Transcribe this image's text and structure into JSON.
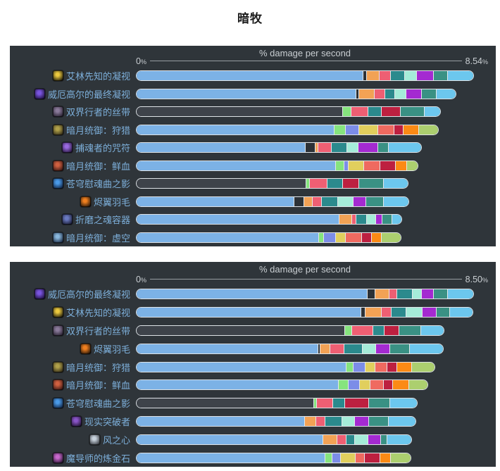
{
  "page": {
    "title": "暗牧"
  },
  "colors": {
    "page_background": "#ffffff",
    "panel_background": "#2f353a",
    "label_text": "#7dafda",
    "axis_text": "#c9ced2",
    "axis_line": "#979da2",
    "bar_border": "#dde2e6",
    "segments": {
      "base": "#7cb2e6",
      "unfilled": "#3e434a",
      "sep": "#2c3136",
      "orange": "#f2a255",
      "pink": "#ee5f73",
      "teal": "#2b8a8d",
      "aqua": "#a5ecd9",
      "purple": "#a42ad1",
      "seagreen": "#3a9184",
      "sky": "#6cc7ee",
      "green": "#86e47e",
      "peri": "#7c8de8",
      "yellow": "#e1cf5d",
      "salmon": "#ef6a60",
      "crimson": "#bd2040",
      "orange2": "#fb8a15",
      "lgreen": "#accf6f"
    }
  },
  "chart_data": [
    {
      "type": "bar",
      "orientation": "horizontal",
      "stacked": true,
      "axis_title": "% damage per second",
      "axis_min_label": "0",
      "axis_max_label": "8.54",
      "unit": "%",
      "xlim": [
        0,
        8.54
      ],
      "grid": false,
      "legend": "none",
      "categories": [
        "艾林先知的凝视",
        "威厄高尔的最终凝视",
        "双界行者的丝带",
        "暗月统御：狩猎",
        "捕魂者的咒符",
        "暗月统御：鲜血",
        "苍穹慰魂曲之影",
        "烬翼羽毛",
        "折磨之魂容器",
        "暗月统御：虚空"
      ],
      "values": [
        8.54,
        8.1,
        7.7,
        7.65,
        7.23,
        7.14,
        6.89,
        6.91,
        6.73,
        6.71
      ],
      "rows": [
        {
          "label": "艾林先知的凝视",
          "icon": "gold-eye",
          "icon_colors": [
            "#ecc93f",
            "#141208"
          ],
          "total_pct": 8.54,
          "filled": true,
          "segments": [
            [
              "base",
              67.2
            ],
            [
              "sep",
              0.9
            ],
            [
              "orange",
              3.8
            ],
            [
              "pink",
              3.4
            ],
            [
              "teal",
              4.2
            ],
            [
              "aqua",
              3.6
            ],
            [
              "purple",
              5.0
            ],
            [
              "seagreen",
              4.2
            ],
            [
              "sky",
              7.7
            ]
          ]
        },
        {
          "label": "威厄高尔的最终凝视",
          "icon": "purple-eye",
          "icon_colors": [
            "#7a55e0",
            "#150a2e"
          ],
          "total_pct": 8.1,
          "filled": true,
          "segments": [
            [
              "base",
              65.1
            ],
            [
              "sep",
              0.9
            ],
            [
              "orange",
              4.6
            ],
            [
              "pink",
              3.1
            ],
            [
              "teal",
              3.0
            ],
            [
              "aqua",
              3.3
            ],
            [
              "purple",
              4.6
            ],
            [
              "seagreen",
              4.4
            ],
            [
              "sky",
              5.8
            ]
          ]
        },
        {
          "label": "双界行者的丝带",
          "icon": "dark-ribbon",
          "icon_colors": [
            "#8a7a9a",
            "#201a28"
          ],
          "total_pct": 7.7,
          "filled": false,
          "segments": [
            [
              "unfilled",
              61.2
            ],
            [
              "green",
              2.5
            ],
            [
              "pink",
              5.0
            ],
            [
              "teal",
              3.9
            ],
            [
              "crimson",
              5.6
            ],
            [
              "seagreen",
              7.3
            ],
            [
              "sky",
              4.7
            ]
          ]
        },
        {
          "label": "暗月统御：狩猎",
          "icon": "darkmoon-card-hunt",
          "icon_colors": [
            "#b0a04a",
            "#2a2414"
          ],
          "total_pct": 7.65,
          "filled": true,
          "segments": [
            [
              "base",
              58.5
            ],
            [
              "green",
              3.5
            ],
            [
              "peri",
              3.9
            ],
            [
              "yellow",
              5.6
            ],
            [
              "salmon",
              4.8
            ],
            [
              "crimson",
              2.9
            ],
            [
              "orange2",
              4.6
            ],
            [
              "lgreen",
              5.8
            ]
          ]
        },
        {
          "label": "捕魂者的咒符",
          "icon": "soul-charm",
          "icon_colors": [
            "#9a6ae0",
            "#1c1030"
          ],
          "total_pct": 7.23,
          "filled": true,
          "segments": [
            [
              "base",
              50.0
            ],
            [
              "sep",
              2.9
            ],
            [
              "orange",
              0.8
            ],
            [
              "pink",
              4.0
            ],
            [
              "teal",
              4.6
            ],
            [
              "aqua",
              3.5
            ],
            [
              "purple",
              5.8
            ],
            [
              "seagreen",
              3.1
            ],
            [
              "sky",
              9.9
            ]
          ]
        },
        {
          "label": "暗月统御：鲜血",
          "icon": "darkmoon-card-blood",
          "icon_colors": [
            "#d06040",
            "#2e1210"
          ],
          "total_pct": 7.14,
          "filled": true,
          "segments": [
            [
              "base",
              59.1
            ],
            [
              "green",
              2.5
            ],
            [
              "peri",
              1.2
            ],
            [
              "yellow",
              4.6
            ],
            [
              "salmon",
              4.8
            ],
            [
              "crimson",
              4.6
            ],
            [
              "orange2",
              3.5
            ],
            [
              "lgreen",
              3.3
            ]
          ]
        },
        {
          "label": "苍穹慰魂曲之影",
          "icon": "blue-crystal",
          "icon_colors": [
            "#4a9ae8",
            "#0c1c38"
          ],
          "total_pct": 6.89,
          "filled": false,
          "segments": [
            [
              "unfilled",
              50.2
            ],
            [
              "green",
              1.0
            ],
            [
              "pink",
              5.4
            ],
            [
              "teal",
              4.6
            ],
            [
              "crimson",
              4.8
            ],
            [
              "seagreen",
              7.3
            ],
            [
              "sky",
              7.4
            ]
          ]
        },
        {
          "label": "烬翼羽毛",
          "icon": "ember-feather",
          "icon_colors": [
            "#f08020",
            "#1a0f06"
          ],
          "total_pct": 6.91,
          "filled": true,
          "segments": [
            [
              "base",
              46.7
            ],
            [
              "sep",
              2.9
            ],
            [
              "orange",
              2.5
            ],
            [
              "pink",
              2.7
            ],
            [
              "teal",
              4.8
            ],
            [
              "aqua",
              4.8
            ],
            [
              "purple",
              3.7
            ],
            [
              "seagreen",
              5.2
            ],
            [
              "sky",
              7.6
            ]
          ]
        },
        {
          "label": "折磨之魂容器",
          "icon": "soul-vessel",
          "icon_colors": [
            "#6a7ac0",
            "#12142a"
          ],
          "total_pct": 6.73,
          "filled": true,
          "segments": [
            [
              "base",
              60.2
            ],
            [
              "orange",
              3.7
            ],
            [
              "pink",
              1.2
            ],
            [
              "teal",
              3.1
            ],
            [
              "aqua",
              2.9
            ],
            [
              "purple",
              1.7
            ],
            [
              "seagreen",
              3.1
            ],
            [
              "sky",
              2.9
            ]
          ]
        },
        {
          "label": "暗月统御：虚空",
          "icon": "darkmoon-card-void",
          "icon_colors": [
            "#8ab8dd",
            "#14223a"
          ],
          "total_pct": 6.71,
          "filled": true,
          "segments": [
            [
              "base",
              54.0
            ],
            [
              "green",
              1.5
            ],
            [
              "peri",
              3.5
            ],
            [
              "yellow",
              2.9
            ],
            [
              "salmon",
              5.0
            ],
            [
              "crimson",
              2.9
            ],
            [
              "orange2",
              2.9
            ],
            [
              "lgreen",
              5.9
            ]
          ]
        }
      ]
    },
    {
      "type": "bar",
      "orientation": "horizontal",
      "stacked": true,
      "axis_title": "% damage per second",
      "axis_min_label": "0",
      "axis_max_label": "8.50",
      "unit": "%",
      "xlim": [
        0,
        8.5
      ],
      "grid": false,
      "legend": "none",
      "categories": [
        "威厄高尔的最终凝视",
        "艾林先知的凝视",
        "双界行者的丝带",
        "烬翼羽毛",
        "暗月统御：狩猎",
        "暗月统御：鲜血",
        "苍穹慰魂曲之影",
        "现实突破者",
        "风之心",
        "魔导师的炼金石"
      ],
      "values": [
        8.5,
        8.48,
        7.75,
        7.74,
        7.53,
        7.34,
        7.08,
        7.06,
        6.94,
        6.93
      ],
      "rows": [
        {
          "label": "威厄高尔的最终凝视",
          "icon": "purple-eye",
          "icon_colors": [
            "#7a55e0",
            "#150a2e"
          ],
          "total_pct": 8.5,
          "filled": true,
          "segments": [
            [
              "base",
              68.5
            ],
            [
              "sep",
              2.3
            ],
            [
              "orange",
              4.0
            ],
            [
              "pink",
              2.5
            ],
            [
              "teal",
              4.6
            ],
            [
              "aqua",
              2.7
            ],
            [
              "purple",
              3.4
            ],
            [
              "seagreen",
              4.2
            ],
            [
              "sky",
              7.8
            ]
          ]
        },
        {
          "label": "艾林先知的凝视",
          "icon": "gold-eye",
          "icon_colors": [
            "#ecc93f",
            "#141208"
          ],
          "total_pct": 8.48,
          "filled": true,
          "segments": [
            [
              "base",
              66.6
            ],
            [
              "sep",
              1.1
            ],
            [
              "orange",
              5.0
            ],
            [
              "pink",
              2.9
            ],
            [
              "teal",
              4.4
            ],
            [
              "aqua",
              4.8
            ],
            [
              "purple",
              4.2
            ],
            [
              "seagreen",
              4.0
            ],
            [
              "sky",
              6.8
            ]
          ]
        },
        {
          "label": "双界行者的丝带",
          "icon": "dark-ribbon",
          "icon_colors": [
            "#8a7a9a",
            "#201a28"
          ],
          "total_pct": 7.75,
          "filled": false,
          "segments": [
            [
              "unfilled",
              61.8
            ],
            [
              "green",
              2.1
            ],
            [
              "pink",
              6.3
            ],
            [
              "teal",
              3.2
            ],
            [
              "crimson",
              4.4
            ],
            [
              "seagreen",
              6.5
            ],
            [
              "sky",
              6.9
            ]
          ]
        },
        {
          "label": "烬翼羽毛",
          "icon": "ember-feather",
          "icon_colors": [
            "#f08020",
            "#1a0f06"
          ],
          "total_pct": 7.74,
          "filled": true,
          "segments": [
            [
              "base",
              53.8
            ],
            [
              "sep",
              0.6
            ],
            [
              "orange",
              2.9
            ],
            [
              "pink",
              4.2
            ],
            [
              "teal",
              5.5
            ],
            [
              "aqua",
              4.0
            ],
            [
              "purple",
              4.2
            ],
            [
              "seagreen",
              5.9
            ],
            [
              "sky",
              9.9
            ]
          ]
        },
        {
          "label": "暗月统御：狩猎",
          "icon": "darkmoon-card-hunt",
          "icon_colors": [
            "#b0a04a",
            "#2a2414"
          ],
          "total_pct": 7.53,
          "filled": true,
          "segments": [
            [
              "base",
              62.2
            ],
            [
              "green",
              2.1
            ],
            [
              "peri",
              3.6
            ],
            [
              "yellow",
              2.9
            ],
            [
              "salmon",
              3.6
            ],
            [
              "crimson",
              2.9
            ],
            [
              "orange2",
              4.4
            ],
            [
              "lgreen",
              6.9
            ]
          ]
        },
        {
          "label": "暗月统御：鲜血",
          "icon": "darkmoon-card-blood",
          "icon_colors": [
            "#d06040",
            "#2e1210"
          ],
          "total_pct": 7.34,
          "filled": true,
          "segments": [
            [
              "base",
              59.9
            ],
            [
              "green",
              2.9
            ],
            [
              "peri",
              3.4
            ],
            [
              "yellow",
              3.2
            ],
            [
              "salmon",
              3.8
            ],
            [
              "crimson",
              2.7
            ],
            [
              "orange2",
              5.0
            ],
            [
              "lgreen",
              5.5
            ]
          ]
        },
        {
          "label": "苍穹慰魂曲之影",
          "icon": "blue-crystal",
          "icon_colors": [
            "#4a9ae8",
            "#0c1c38"
          ],
          "total_pct": 7.08,
          "filled": false,
          "segments": [
            [
              "unfilled",
              52.5
            ],
            [
              "green",
              0.8
            ],
            [
              "pink",
              5.0
            ],
            [
              "teal",
              3.4
            ],
            [
              "crimson",
              7.1
            ],
            [
              "seagreen",
              6.3
            ],
            [
              "sky",
              8.2
            ]
          ]
        },
        {
          "label": "现实突破者",
          "icon": "reality-breaker",
          "icon_colors": [
            "#8a55c8",
            "#170e26"
          ],
          "total_pct": 7.06,
          "filled": true,
          "segments": [
            [
              "base",
              49.8
            ],
            [
              "orange",
              3.4
            ],
            [
              "pink",
              2.7
            ],
            [
              "teal",
              5.0
            ],
            [
              "aqua",
              3.8
            ],
            [
              "purple",
              4.2
            ],
            [
              "seagreen",
              5.9
            ],
            [
              "sky",
              8.2
            ]
          ]
        },
        {
          "label": "风之心",
          "icon": "heart-of-wind",
          "icon_colors": [
            "#c8d2dc",
            "#2a2e34"
          ],
          "total_pct": 6.94,
          "filled": true,
          "segments": [
            [
              "base",
              55.3
            ],
            [
              "orange",
              4.2
            ],
            [
              "pink",
              2.7
            ],
            [
              "teal",
              2.5
            ],
            [
              "aqua",
              4.0
            ],
            [
              "purple",
              3.8
            ],
            [
              "seagreen",
              1.9
            ],
            [
              "sky",
              7.2
            ]
          ]
        },
        {
          "label": "魔导师的炼金石",
          "icon": "alchemist-stone",
          "icon_colors": [
            "#c868cc",
            "#1c1026"
          ],
          "total_pct": 6.93,
          "filled": true,
          "segments": [
            [
              "base",
              55.9
            ],
            [
              "green",
              2.1
            ],
            [
              "peri",
              2.5
            ],
            [
              "yellow",
              4.4
            ],
            [
              "salmon",
              2.7
            ],
            [
              "crimson",
              4.6
            ],
            [
              "orange2",
              3.2
            ],
            [
              "lgreen",
              6.1
            ]
          ]
        }
      ]
    }
  ]
}
